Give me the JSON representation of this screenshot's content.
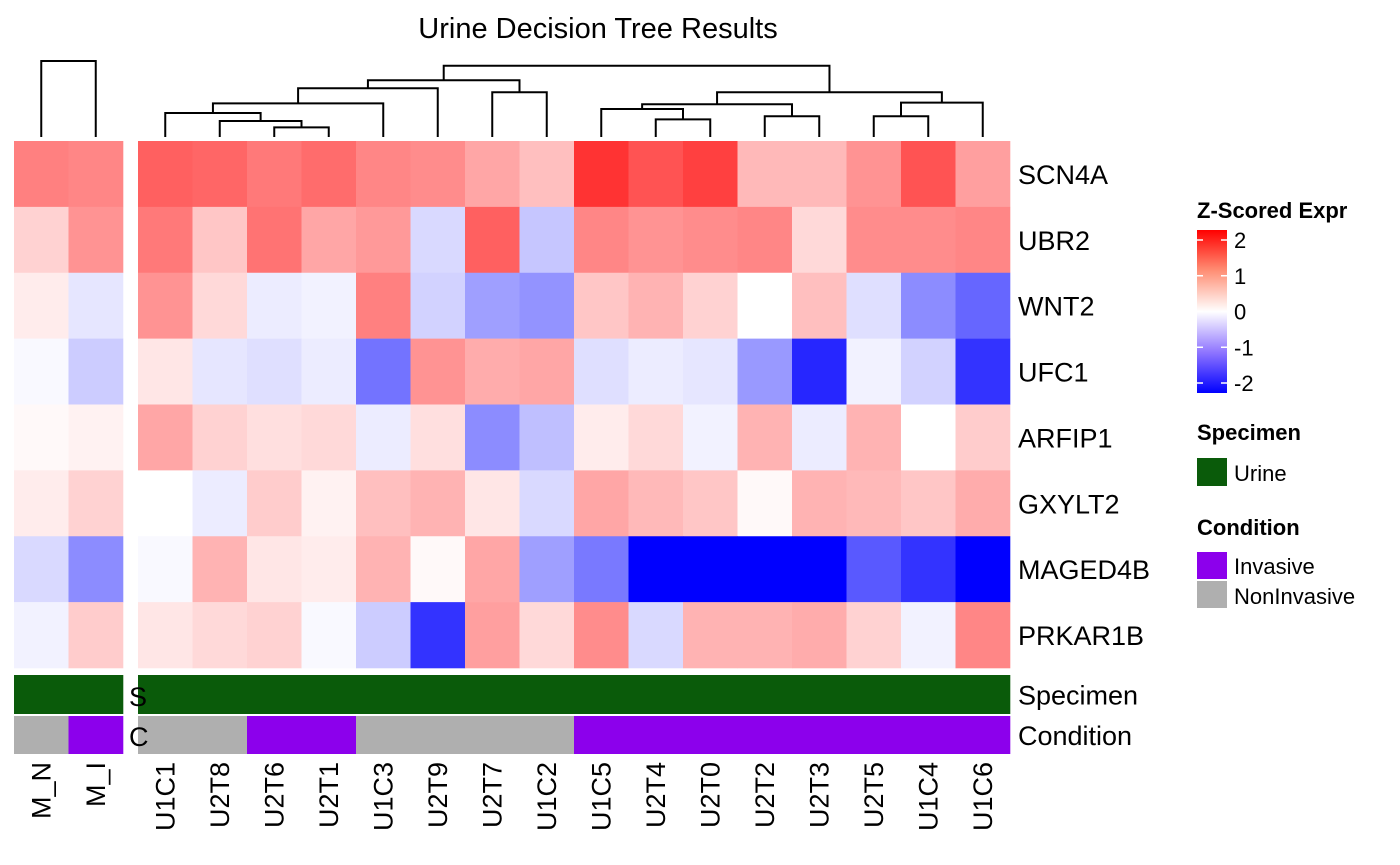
{
  "chart_data": {
    "type": "heatmap",
    "title": "Urine Decision Tree Results",
    "rows": [
      "SCN4A",
      "UBR2",
      "WNT2",
      "UFC1",
      "ARFIP1",
      "GXYLT2",
      "MAGED4B",
      "PRKAR1B"
    ],
    "column_groups": [
      {
        "columns": [
          "M_N",
          "M_I"
        ]
      },
      {
        "columns": [
          "U1C1",
          "U2T8",
          "U2T6",
          "U2T1",
          "U1C3",
          "U2T9",
          "U2T7",
          "U1C2",
          "U1C5",
          "U2T4",
          "U2T0",
          "U2T2",
          "U2T3",
          "U2T5",
          "U1C4",
          "U1C6"
        ]
      }
    ],
    "values": [
      [
        1.0,
        0.95,
        1.25,
        1.2,
        1.05,
        1.15,
        0.95,
        0.9,
        0.7,
        0.5,
        1.6,
        1.35,
        1.5,
        0.55,
        0.55,
        0.85,
        1.35,
        0.75
      ],
      [
        0.35,
        0.85,
        1.05,
        0.45,
        1.1,
        0.7,
        0.8,
        -0.3,
        1.25,
        -0.45,
        0.95,
        0.85,
        0.9,
        0.95,
        0.3,
        0.9,
        0.9,
        0.95
      ],
      [
        0.15,
        -0.2,
        0.85,
        0.3,
        -0.15,
        -0.1,
        1.0,
        -0.35,
        -0.75,
        -0.85,
        0.45,
        0.6,
        0.35,
        0.0,
        0.5,
        -0.25,
        -0.9,
        -1.2
      ],
      [
        -0.05,
        -0.4,
        0.2,
        -0.2,
        -0.25,
        -0.15,
        -1.1,
        0.85,
        0.65,
        0.7,
        -0.25,
        -0.15,
        -0.2,
        -0.8,
        -1.7,
        -0.1,
        -0.35,
        -1.6
      ],
      [
        0.05,
        0.1,
        0.7,
        0.35,
        0.25,
        0.3,
        -0.15,
        0.25,
        -0.9,
        -0.5,
        0.15,
        0.3,
        -0.1,
        0.6,
        -0.15,
        0.6,
        0.0,
        0.4
      ],
      [
        0.15,
        0.35,
        0.0,
        -0.15,
        0.4,
        0.1,
        0.5,
        0.6,
        0.2,
        -0.3,
        0.7,
        0.55,
        0.45,
        0.05,
        0.6,
        0.55,
        0.45,
        0.65
      ],
      [
        -0.3,
        -0.9,
        -0.05,
        0.6,
        0.2,
        0.15,
        0.6,
        0.05,
        0.7,
        -0.75,
        -1.05,
        -2.0,
        -2.0,
        -2.0,
        -2.0,
        -1.3,
        -1.6,
        -2.0
      ],
      [
        -0.1,
        0.4,
        0.2,
        0.3,
        0.35,
        -0.05,
        -0.4,
        -1.6,
        0.75,
        0.3,
        0.9,
        -0.3,
        0.6,
        0.6,
        0.65,
        0.35,
        -0.1,
        0.95
      ]
    ],
    "annotations": {
      "Specimen": [
        "Urine",
        "Urine",
        "Urine",
        "Urine",
        "Urine",
        "Urine",
        "Urine",
        "Urine",
        "Urine",
        "Urine",
        "Urine",
        "Urine",
        "Urine",
        "Urine",
        "Urine",
        "Urine",
        "Urine",
        "Urine"
      ],
      "Condition": [
        "NonInvasive",
        "Invasive",
        "NonInvasive",
        "NonInvasive",
        "Invasive",
        "Invasive",
        "NonInvasive",
        "NonInvasive",
        "NonInvasive",
        "NonInvasive",
        "Invasive",
        "Invasive",
        "Invasive",
        "Invasive",
        "Invasive",
        "Invasive",
        "Invasive",
        "Invasive"
      ]
    },
    "annotation_labels": [
      "Specimen",
      "Condition"
    ],
    "annotation_clipped_labels": [
      "S",
      "C"
    ],
    "legend": {
      "title": "Z-Scored Expr",
      "ticks": [
        "2",
        "1",
        "0",
        "-1",
        "-2"
      ],
      "range": [
        -2,
        2
      ],
      "colors": {
        "low": "#0000FF",
        "mid": "#FFFFFF",
        "high": "#FF0000"
      }
    },
    "specimen_legend": {
      "title": "Specimen",
      "items": [
        {
          "label": "Urine",
          "color": "#0A5B0A"
        }
      ]
    },
    "condition_legend": {
      "title": "Condition",
      "items": [
        {
          "label": "Invasive",
          "color": "#8C00EC"
        },
        {
          "label": "NonInvasive",
          "color": "#AFAFAF"
        }
      ]
    }
  }
}
